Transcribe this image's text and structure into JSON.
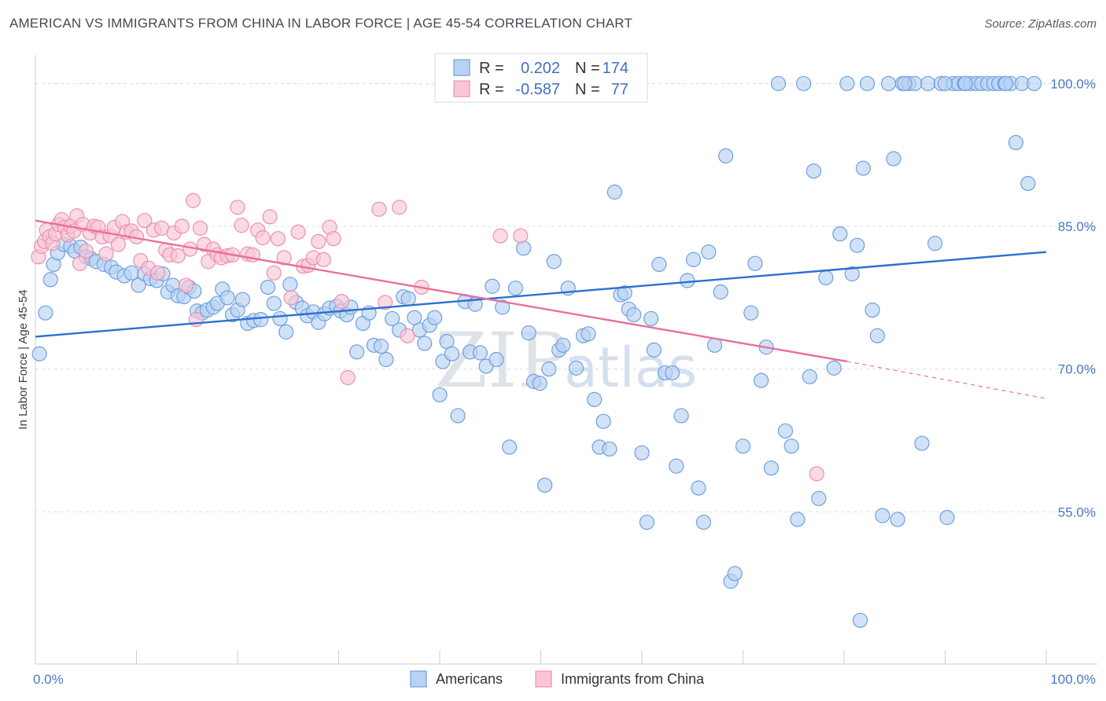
{
  "title": "AMERICAN VS IMMIGRANTS FROM CHINA IN LABOR FORCE | AGE 45-54 CORRELATION CHART",
  "source": "Source: ZipAtlas.com",
  "chart_data": {
    "type": "scatter",
    "title": "AMERICAN VS IMMIGRANTS FROM CHINA IN LABOR FORCE | AGE 45-54 CORRELATION CHART",
    "xlabel": "",
    "ylabel": "In Labor Force | Age 45-54",
    "xlim": [
      0,
      100
    ],
    "ylim": [
      39,
      103
    ],
    "x_tick_labels": [
      "0.0%",
      "100.0%"
    ],
    "y_ticks": [
      100,
      85,
      70,
      55
    ],
    "y_tick_labels": [
      "100.0%",
      "85.0%",
      "70.0%",
      "55.0%"
    ],
    "grid": true,
    "colors": {
      "americans_fill": "#b9d2f2",
      "americans_stroke": "#6f9fe0",
      "americans_line": "#2e6fcf",
      "china_fill": "#f8c6d6",
      "china_stroke": "#ee8fb0",
      "china_line": "#e8709a"
    },
    "legend": [
      {
        "r_label": "R =",
        "r_value": "0.202",
        "n_label": "N =",
        "n_value": "174"
      },
      {
        "r_label": "R =",
        "r_value": "-0.587",
        "n_label": "N =",
        "n_value": "77"
      }
    ],
    "bottom_legend": [
      "Americans",
      "Immigrants from China"
    ],
    "watermark": {
      "zip": "ZIP",
      "atlas": "atlas"
    },
    "series": [
      {
        "name": "Americans",
        "trend": {
          "x": [
            0,
            100
          ],
          "y": [
            73.4,
            82.3
          ]
        },
        "points": [
          [
            0.4,
            71.6
          ],
          [
            1.0,
            75.9
          ],
          [
            1.5,
            79.4
          ],
          [
            1.8,
            81.0
          ],
          [
            2.2,
            82.2
          ],
          [
            2.8,
            83.1
          ],
          [
            3.5,
            82.9
          ],
          [
            3.9,
            82.4
          ],
          [
            4.5,
            82.8
          ],
          [
            5.0,
            81.8
          ],
          [
            5.5,
            81.6
          ],
          [
            6.0,
            81.3
          ],
          [
            6.8,
            81.0
          ],
          [
            7.5,
            80.7
          ],
          [
            8.0,
            80.2
          ],
          [
            8.8,
            79.8
          ],
          [
            9.5,
            80.1
          ],
          [
            10.2,
            78.8
          ],
          [
            10.8,
            80.0
          ],
          [
            11.4,
            79.5
          ],
          [
            12.0,
            79.3
          ],
          [
            12.6,
            80.0
          ],
          [
            13.1,
            78.1
          ],
          [
            13.6,
            78.8
          ],
          [
            14.1,
            77.7
          ],
          [
            14.7,
            77.6
          ],
          [
            15.2,
            78.6
          ],
          [
            15.7,
            78.2
          ],
          [
            16.0,
            76.1
          ],
          [
            16.5,
            75.9
          ],
          [
            17.0,
            76.2
          ],
          [
            17.6,
            76.5
          ],
          [
            18.0,
            76.9
          ],
          [
            18.5,
            78.4
          ],
          [
            19.0,
            77.5
          ],
          [
            19.5,
            75.7
          ],
          [
            20.0,
            76.2
          ],
          [
            20.5,
            77.3
          ],
          [
            21.0,
            74.8
          ],
          [
            21.6,
            75.1
          ],
          [
            22.3,
            75.2
          ],
          [
            23.0,
            78.6
          ],
          [
            23.6,
            76.9
          ],
          [
            24.2,
            75.3
          ],
          [
            24.8,
            73.9
          ],
          [
            25.2,
            78.9
          ],
          [
            25.8,
            77.0
          ],
          [
            26.4,
            76.4
          ],
          [
            26.9,
            75.6
          ],
          [
            27.5,
            76.0
          ],
          [
            28.0,
            74.9
          ],
          [
            28.6,
            75.8
          ],
          [
            29.1,
            76.4
          ],
          [
            29.8,
            76.6
          ],
          [
            30.2,
            76.1
          ],
          [
            30.8,
            75.7
          ],
          [
            31.2,
            76.5
          ],
          [
            31.8,
            71.8
          ],
          [
            32.4,
            74.8
          ],
          [
            33.0,
            75.9
          ],
          [
            33.5,
            72.5
          ],
          [
            34.2,
            72.4
          ],
          [
            34.7,
            71.0
          ],
          [
            35.3,
            75.3
          ],
          [
            36.0,
            74.1
          ],
          [
            36.4,
            77.6
          ],
          [
            36.9,
            77.4
          ],
          [
            37.5,
            75.4
          ],
          [
            38.0,
            74.1
          ],
          [
            38.5,
            72.7
          ],
          [
            39.0,
            74.6
          ],
          [
            39.5,
            75.4
          ],
          [
            40.0,
            67.3
          ],
          [
            40.3,
            70.8
          ],
          [
            40.7,
            72.9
          ],
          [
            41.2,
            71.6
          ],
          [
            41.8,
            65.1
          ],
          [
            42.5,
            77.1
          ],
          [
            43.0,
            71.8
          ],
          [
            43.5,
            76.8
          ],
          [
            44.0,
            71.7
          ],
          [
            44.6,
            70.3
          ],
          [
            45.2,
            78.7
          ],
          [
            45.6,
            71.0
          ],
          [
            46.2,
            76.5
          ],
          [
            46.9,
            61.8
          ],
          [
            47.5,
            78.5
          ],
          [
            48.3,
            82.7
          ],
          [
            48.8,
            73.8
          ],
          [
            49.3,
            68.7
          ],
          [
            49.9,
            68.5
          ],
          [
            50.4,
            57.8
          ],
          [
            50.8,
            70.0
          ],
          [
            51.3,
            81.3
          ],
          [
            51.8,
            72.0
          ],
          [
            52.2,
            72.5
          ],
          [
            52.7,
            78.5
          ],
          [
            53.5,
            70.1
          ],
          [
            54.2,
            73.5
          ],
          [
            54.7,
            73.7
          ],
          [
            55.3,
            66.8
          ],
          [
            55.8,
            61.8
          ],
          [
            56.2,
            64.5
          ],
          [
            56.8,
            61.6
          ],
          [
            57.3,
            88.6
          ],
          [
            57.9,
            77.8
          ],
          [
            58.3,
            78.0
          ],
          [
            58.7,
            76.3
          ],
          [
            59.2,
            75.7
          ],
          [
            60.0,
            61.2
          ],
          [
            60.5,
            53.9
          ],
          [
            60.9,
            75.3
          ],
          [
            61.2,
            72.0
          ],
          [
            61.7,
            81.0
          ],
          [
            62.3,
            69.6
          ],
          [
            63.0,
            69.6
          ],
          [
            63.4,
            59.8
          ],
          [
            63.9,
            65.1
          ],
          [
            64.5,
            79.3
          ],
          [
            65.1,
            81.5
          ],
          [
            65.6,
            57.5
          ],
          [
            66.1,
            53.9
          ],
          [
            66.6,
            82.3
          ],
          [
            67.2,
            72.5
          ],
          [
            67.8,
            78.1
          ],
          [
            68.3,
            92.4
          ],
          [
            68.8,
            47.7
          ],
          [
            69.2,
            48.5
          ],
          [
            70.0,
            61.9
          ],
          [
            70.8,
            75.9
          ],
          [
            71.2,
            81.1
          ],
          [
            71.8,
            68.8
          ],
          [
            72.3,
            72.3
          ],
          [
            72.8,
            59.6
          ],
          [
            73.5,
            100.0
          ],
          [
            74.2,
            63.5
          ],
          [
            74.8,
            61.9
          ],
          [
            75.4,
            54.2
          ],
          [
            76.0,
            100.0
          ],
          [
            76.6,
            69.2
          ],
          [
            77.0,
            90.8
          ],
          [
            77.5,
            56.4
          ],
          [
            78.2,
            79.6
          ],
          [
            79.0,
            70.1
          ],
          [
            79.6,
            84.2
          ],
          [
            80.3,
            100.0
          ],
          [
            80.8,
            80.0
          ],
          [
            81.3,
            83.0
          ],
          [
            81.9,
            91.1
          ],
          [
            82.3,
            100.0
          ],
          [
            82.8,
            76.2
          ],
          [
            83.3,
            73.5
          ],
          [
            83.8,
            54.6
          ],
          [
            84.4,
            100.0
          ],
          [
            84.9,
            92.1
          ],
          [
            85.3,
            54.2
          ],
          [
            85.8,
            100.0
          ],
          [
            86.4,
            100.0
          ],
          [
            87.0,
            100.0
          ],
          [
            87.7,
            62.2
          ],
          [
            88.3,
            100.0
          ],
          [
            89.0,
            83.2
          ],
          [
            89.6,
            100.0
          ],
          [
            90.2,
            54.4
          ],
          [
            90.8,
            100.0
          ],
          [
            91.3,
            100.0
          ],
          [
            91.9,
            100.0
          ],
          [
            92.5,
            100.0
          ],
          [
            93.1,
            100.0
          ],
          [
            93.6,
            100.0
          ],
          [
            94.2,
            100.0
          ],
          [
            94.8,
            100.0
          ],
          [
            95.3,
            100.0
          ],
          [
            95.9,
            100.0
          ],
          [
            96.5,
            100.0
          ],
          [
            97.0,
            93.8
          ],
          [
            97.6,
            100.0
          ],
          [
            98.2,
            89.5
          ],
          [
            98.8,
            100.0
          ],
          [
            81.6,
            43.6
          ],
          [
            86.0,
            100.0
          ],
          [
            90.0,
            100.0
          ],
          [
            92.0,
            100.0
          ],
          [
            96.0,
            100.0
          ]
        ]
      },
      {
        "name": "Immigrants from China",
        "trend": {
          "x": [
            0,
            80.3
          ],
          "y": [
            85.6,
            70.8
          ]
        },
        "trend_dashed": {
          "x": [
            80.3,
            100
          ],
          "y": [
            70.8,
            66.9
          ]
        },
        "points": [
          [
            0.3,
            81.8
          ],
          [
            0.6,
            82.9
          ],
          [
            0.9,
            83.4
          ],
          [
            1.1,
            84.6
          ],
          [
            1.4,
            83.9
          ],
          [
            1.7,
            83.2
          ],
          [
            2.0,
            84.2
          ],
          [
            2.3,
            85.2
          ],
          [
            2.6,
            85.7
          ],
          [
            2.9,
            84.9
          ],
          [
            3.2,
            84.1
          ],
          [
            3.5,
            85.0
          ],
          [
            3.8,
            84.5
          ],
          [
            4.1,
            86.1
          ],
          [
            4.4,
            81.1
          ],
          [
            4.7,
            85.2
          ],
          [
            5.0,
            82.4
          ],
          [
            5.4,
            84.3
          ],
          [
            5.8,
            85.0
          ],
          [
            6.2,
            84.9
          ],
          [
            6.6,
            83.9
          ],
          [
            7.0,
            82.1
          ],
          [
            7.4,
            84.0
          ],
          [
            7.8,
            84.9
          ],
          [
            8.2,
            83.1
          ],
          [
            8.6,
            85.5
          ],
          [
            9.0,
            84.4
          ],
          [
            9.5,
            84.5
          ],
          [
            10.0,
            83.9
          ],
          [
            10.4,
            81.4
          ],
          [
            10.8,
            85.6
          ],
          [
            11.2,
            80.6
          ],
          [
            11.7,
            84.6
          ],
          [
            12.1,
            80.1
          ],
          [
            12.5,
            84.8
          ],
          [
            12.9,
            82.5
          ],
          [
            13.3,
            82.0
          ],
          [
            13.7,
            84.3
          ],
          [
            14.1,
            81.9
          ],
          [
            14.5,
            85.0
          ],
          [
            14.9,
            78.8
          ],
          [
            15.3,
            82.6
          ],
          [
            15.6,
            87.7
          ],
          [
            15.9,
            75.2
          ],
          [
            16.3,
            84.8
          ],
          [
            16.7,
            83.1
          ],
          [
            17.1,
            81.3
          ],
          [
            17.6,
            82.6
          ],
          [
            18.0,
            82.0
          ],
          [
            18.4,
            81.7
          ],
          [
            19.0,
            81.9
          ],
          [
            19.5,
            82.0
          ],
          [
            20.0,
            87.0
          ],
          [
            20.4,
            85.1
          ],
          [
            21.0,
            82.1
          ],
          [
            21.5,
            82.0
          ],
          [
            22.0,
            84.6
          ],
          [
            22.5,
            83.8
          ],
          [
            23.2,
            86.0
          ],
          [
            23.6,
            80.1
          ],
          [
            24.0,
            83.7
          ],
          [
            24.6,
            81.7
          ],
          [
            25.3,
            77.5
          ],
          [
            26.0,
            84.4
          ],
          [
            26.5,
            80.8
          ],
          [
            27.0,
            80.9
          ],
          [
            27.5,
            81.7
          ],
          [
            28.0,
            83.4
          ],
          [
            28.5,
            81.5
          ],
          [
            29.1,
            84.9
          ],
          [
            29.5,
            83.7
          ],
          [
            30.3,
            77.1
          ],
          [
            30.9,
            69.1
          ],
          [
            34.0,
            86.8
          ],
          [
            34.6,
            77.0
          ],
          [
            36.0,
            87.0
          ],
          [
            36.8,
            73.5
          ],
          [
            38.2,
            78.6
          ],
          [
            46.0,
            84.0
          ],
          [
            77.3,
            59.0
          ],
          [
            48.0,
            84.0
          ]
        ]
      }
    ]
  }
}
